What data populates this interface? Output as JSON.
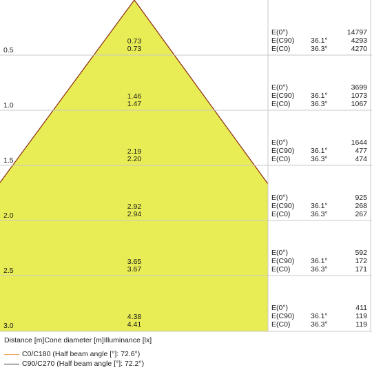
{
  "rows": [
    {
      "distance": "0.5",
      "diameter_c0": "0.73",
      "diameter_c90": "0.73",
      "e0": "14797",
      "ec90": "4293",
      "ec0": "4270"
    },
    {
      "distance": "1.0",
      "diameter_c0": "1.46",
      "diameter_c90": "1.47",
      "e0": "3699",
      "ec90": "1073",
      "ec0": "1067"
    },
    {
      "distance": "1.5",
      "diameter_c0": "2.19",
      "diameter_c90": "2.20",
      "e0": "1644",
      "ec90": "477",
      "ec0": "474"
    },
    {
      "distance": "2.0",
      "diameter_c0": "2.92",
      "diameter_c90": "2.94",
      "e0": "925",
      "ec90": "268",
      "ec0": "267"
    },
    {
      "distance": "2.5",
      "diameter_c0": "3.65",
      "diameter_c90": "3.67",
      "e0": "592",
      "ec90": "172",
      "ec0": "171"
    },
    {
      "distance": "3.0",
      "diameter_c0": "4.38",
      "diameter_c90": "4.41",
      "e0": "411",
      "ec90": "119",
      "ec0": "119"
    }
  ],
  "illuminance_labels": {
    "e0": "E(0°)",
    "ec90": "E(C90)",
    "ec0": "E(C0)"
  },
  "angle_c90": "36.1°",
  "angle_c0": "36.3°",
  "footer": "Distance [m]Cone diameter [m]Illuminance [lx]",
  "legend": [
    {
      "label": "C0/C180 (Half beam angle [°]: 72.6°)",
      "color": "#f0a050"
    },
    {
      "label": "C90/C270 (Half beam angle [°]: 72.2°)",
      "color": "#333333"
    }
  ],
  "colors": {
    "cone_fill": "#e8ec55",
    "cone_edge": "#8a2a10",
    "grid": "#c8c8c8"
  }
}
